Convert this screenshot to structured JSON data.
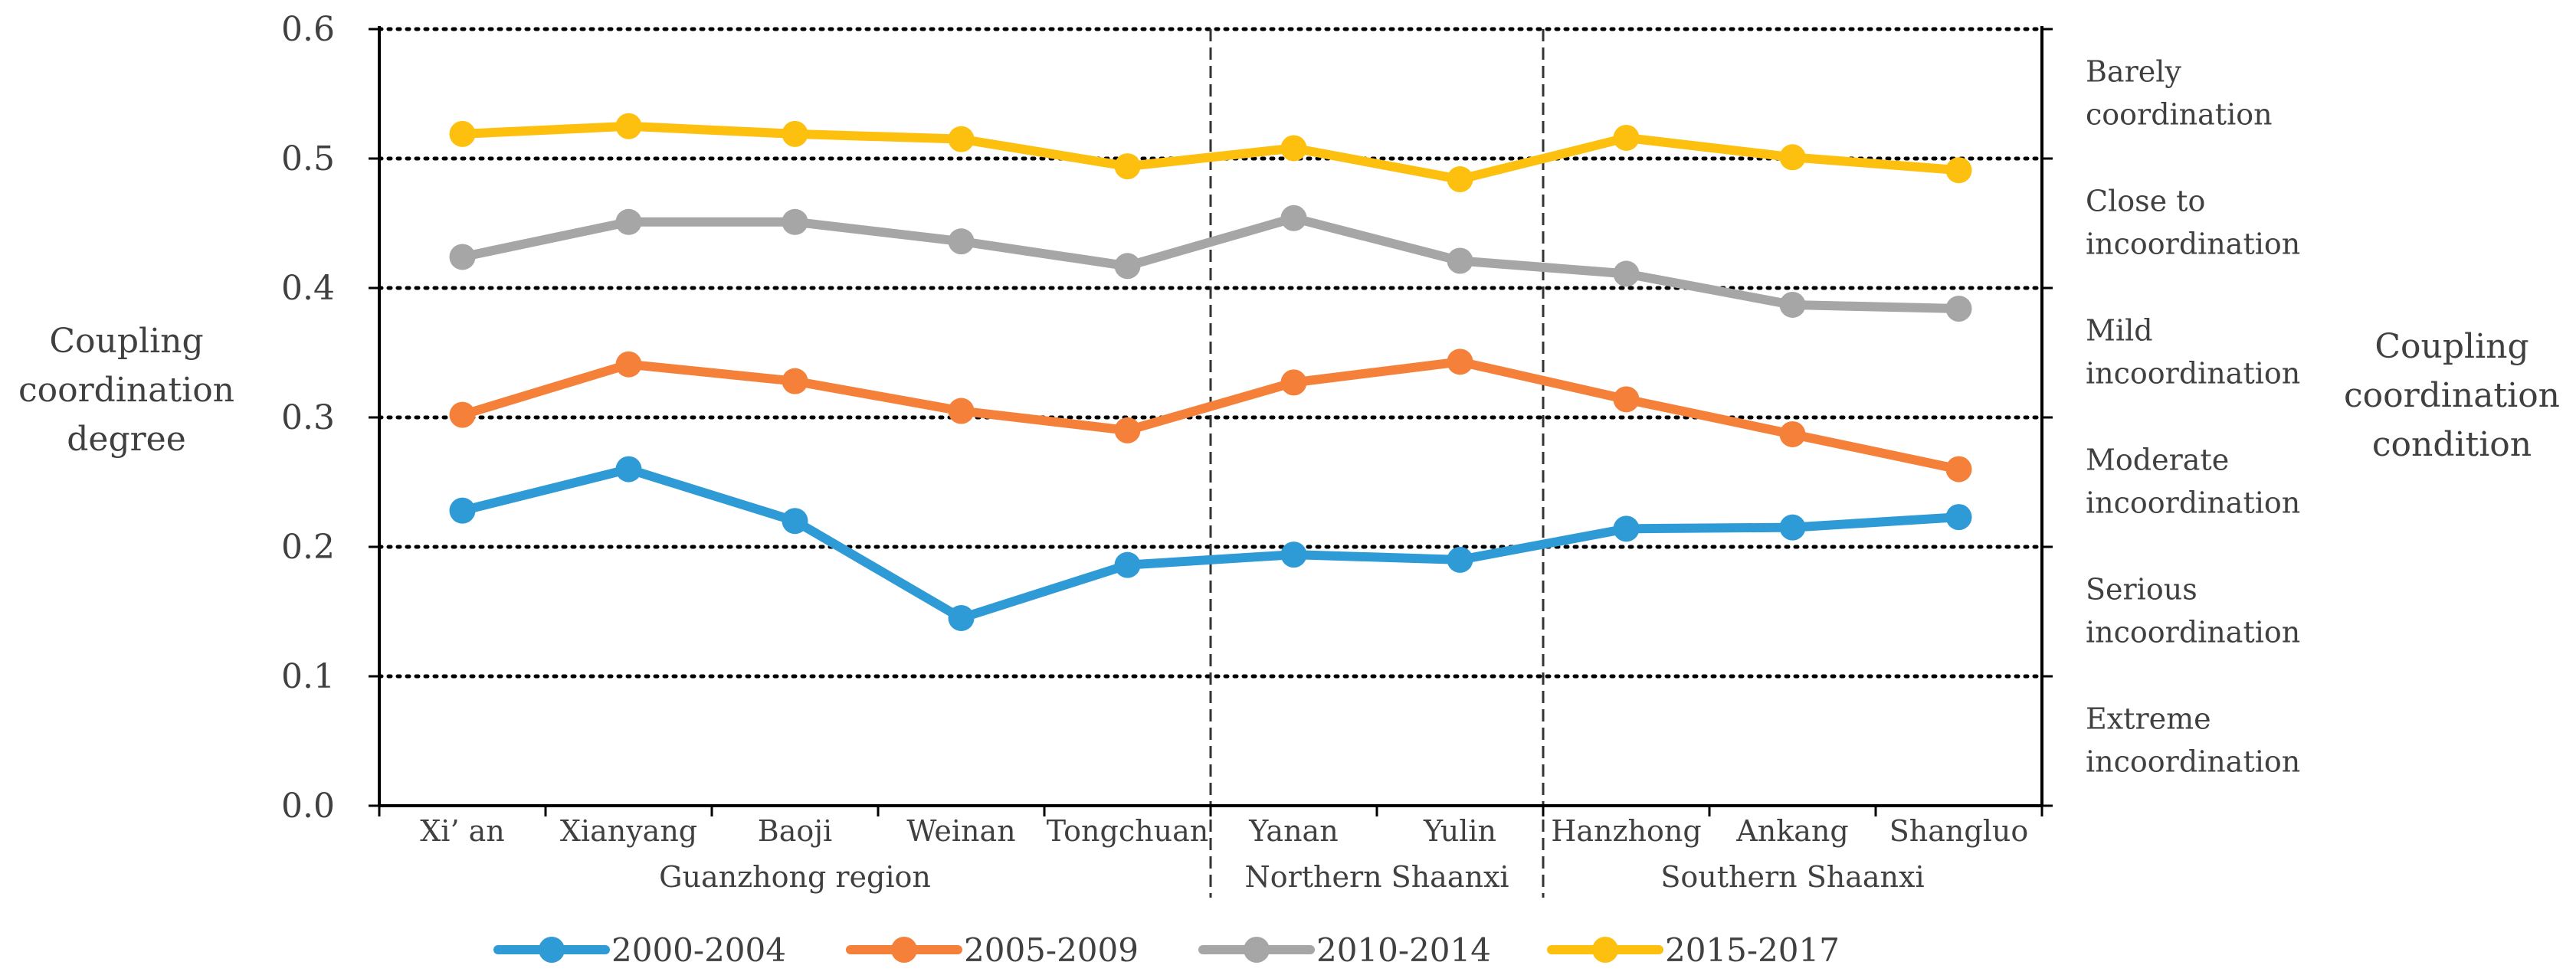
{
  "chart_data": {
    "type": "line",
    "categories": [
      "Xi’ an",
      "Xianyang",
      "Baoji",
      "Weinan",
      "Tongchuan",
      "Yanan",
      "Yulin",
      "Hanzhong",
      "Ankang",
      "Shangluo"
    ],
    "regions": [
      {
        "label": "Guanzhong region",
        "from": 0,
        "to": 4
      },
      {
        "label": "Northern Shaanxi",
        "from": 5,
        "to": 6
      },
      {
        "label": "Southern Shaanxi",
        "from": 7,
        "to": 9
      }
    ],
    "series": [
      {
        "name": "2000-2004",
        "color": "#2f9bd6",
        "values": [
          0.228,
          0.26,
          0.22,
          0.145,
          0.186,
          0.194,
          0.19,
          0.214,
          0.215,
          0.223
        ]
      },
      {
        "name": "2005-2009",
        "color": "#f5803a",
        "values": [
          0.302,
          0.341,
          0.328,
          0.305,
          0.29,
          0.327,
          0.343,
          0.314,
          0.287,
          0.26
        ]
      },
      {
        "name": "2010-2014",
        "color": "#a6a6a6",
        "values": [
          0.424,
          0.451,
          0.451,
          0.436,
          0.417,
          0.454,
          0.421,
          0.411,
          0.387,
          0.384
        ]
      },
      {
        "name": "2015-2017",
        "color": "#fdc00f",
        "values": [
          0.519,
          0.525,
          0.519,
          0.515,
          0.494,
          0.508,
          0.484,
          0.516,
          0.501,
          0.491
        ]
      }
    ],
    "ylabel": "Coupling coordination degree",
    "y2label": "Coupling coordination condition",
    "ylim": [
      0,
      0.6
    ],
    "yticks": [
      "0.0",
      "0.1",
      "0.2",
      "0.3",
      "0.4",
      "0.5",
      "0.6"
    ],
    "grid": "dotted horizontal at each 0.1",
    "conditions": [
      {
        "lines": [
          "Barely",
          "coordination"
        ]
      },
      {
        "lines": [
          "Close to",
          "incoordination"
        ]
      },
      {
        "lines": [
          "Mild",
          "incoordination"
        ]
      },
      {
        "lines": [
          "Moderate",
          "incoordination"
        ]
      },
      {
        "lines": [
          "Serious",
          "incoordination"
        ]
      },
      {
        "lines": [
          "Extreme",
          "incoordination"
        ]
      }
    ],
    "legend_position": "bottom"
  }
}
